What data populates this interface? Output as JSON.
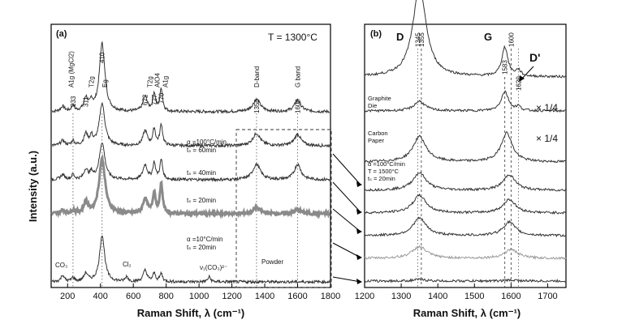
{
  "chart_data": [
    {
      "panel": "(a)",
      "type": "line",
      "annotation_temperature": "T = 1300°C",
      "xlabel": "Raman Shift,  λ (cm⁻¹)",
      "ylabel": "Intensity   (a.u.)",
      "xlim": [
        100,
        1800
      ],
      "xticks": [
        200,
        400,
        600,
        800,
        1000,
        1200,
        1400,
        1600,
        1800
      ],
      "grid": false,
      "peak_labels": [
        {
          "text": "233",
          "x": 233
        },
        {
          "text": "A1g (MgCl2)",
          "x": 222
        },
        {
          "text": "311",
          "x": 311
        },
        {
          "text": "T2g",
          "x": 345
        },
        {
          "text": "410",
          "x": 410
        },
        {
          "text": "Eg",
          "x": 425
        },
        {
          "text": "672",
          "x": 672
        },
        {
          "text": "T2g",
          "x": 700
        },
        {
          "text": "727",
          "x": 727
        },
        {
          "text": "AlO4",
          "x": 745
        },
        {
          "text": "770",
          "x": 770
        },
        {
          "text": "A1g",
          "x": 795
        },
        {
          "text": "1350",
          "x": 1350
        },
        {
          "text": "D-band",
          "x": 1350
        },
        {
          "text": "1600",
          "x": 1600
        },
        {
          "text": "G band",
          "x": 1600
        }
      ],
      "guide_lines_x": [
        233,
        410,
        1350,
        1600
      ],
      "series": [
        {
          "label_lines": [
            "α =100°C/min",
            "tₛ = 60min"
          ],
          "offset": 5,
          "color": "#333333",
          "thick": false,
          "peaks": [
            [
              170,
              0.3,
              15
            ],
            [
              233,
              0.35,
              10
            ],
            [
              311,
              0.8,
              14
            ],
            [
              345,
              0.5,
              10
            ],
            [
              410,
              4.2,
              20
            ],
            [
              672,
              0.9,
              16
            ],
            [
              727,
              1.1,
              10
            ],
            [
              770,
              1.4,
              10
            ],
            [
              1350,
              0.75,
              28
            ],
            [
              1600,
              0.7,
              24
            ]
          ]
        },
        {
          "label_lines": [
            "tₛ = 40min"
          ],
          "offset": 4,
          "color": "#333333",
          "thick": false,
          "peaks": [
            [
              170,
              0.3,
              15
            ],
            [
              233,
              0.3,
              10
            ],
            [
              311,
              0.7,
              14
            ],
            [
              345,
              0.5,
              10
            ],
            [
              410,
              2.6,
              20
            ],
            [
              672,
              0.9,
              16
            ],
            [
              727,
              1.0,
              10
            ],
            [
              770,
              1.3,
              10
            ],
            [
              1350,
              0.75,
              28
            ],
            [
              1600,
              0.7,
              24
            ]
          ]
        },
        {
          "label_lines": [
            "tₛ = 20min"
          ],
          "offset": 3,
          "color": "#333333",
          "thick": false,
          "peaks": [
            [
              170,
              0.3,
              15
            ],
            [
              233,
              0.3,
              10
            ],
            [
              311,
              0.6,
              14
            ],
            [
              345,
              0.4,
              10
            ],
            [
              410,
              2.3,
              20
            ],
            [
              672,
              0.9,
              16
            ],
            [
              727,
              1.0,
              10
            ],
            [
              770,
              1.2,
              10
            ],
            [
              1350,
              0.95,
              28
            ],
            [
              1600,
              0.95,
              24
            ]
          ]
        },
        {
          "label_lines": [
            "α =10°C/min",
            "tₛ = 20min"
          ],
          "offset": 2,
          "color": "#8a8a8a",
          "thick": true,
          "peaks": [
            [
              170,
              0.2,
              15
            ],
            [
              233,
              0.2,
              10
            ],
            [
              311,
              0.7,
              14
            ],
            [
              410,
              3.4,
              22
            ],
            [
              672,
              0.9,
              16
            ],
            [
              727,
              1.3,
              10
            ],
            [
              770,
              1.8,
              10
            ],
            [
              1350,
              0.35,
              28
            ],
            [
              1600,
              0.25,
              24
            ]
          ]
        },
        {
          "label_lines": [
            "Powder"
          ],
          "offset": 0,
          "color": "#333333",
          "thick": false,
          "peaks": [
            [
              170,
              0.4,
              12
            ],
            [
              233,
              0.25,
              10
            ],
            [
              311,
              0.5,
              14
            ],
            [
              410,
              2.9,
              18
            ],
            [
              560,
              0.3,
              10
            ],
            [
              672,
              0.7,
              14
            ],
            [
              727,
              0.5,
              10
            ],
            [
              770,
              0.5,
              10
            ],
            [
              1062,
              0.3,
              10
            ]
          ]
        }
      ],
      "other_labels": [
        "CO₃",
        "Cl₂",
        "ν₁(CO₃)²⁻"
      ]
    },
    {
      "panel": "(b)",
      "type": "line",
      "xlabel": "Raman Shift,  λ (cm⁻¹)",
      "xlim": [
        1200,
        1750
      ],
      "xticks": [
        1200,
        1300,
        1400,
        1500,
        1600,
        1700
      ],
      "band_labels": [
        "D",
        "G",
        "D'"
      ],
      "peak_labels": [
        {
          "text": "1345",
          "x": 1345
        },
        {
          "text": "1355",
          "x": 1355
        },
        {
          "text": "1583",
          "x": 1583
        },
        {
          "text": "1600",
          "x": 1600
        },
        {
          "text": "1620",
          "x": 1620
        }
      ],
      "guide_lines_x": [
        1345,
        1355,
        1583,
        1600,
        1620
      ],
      "series": [
        {
          "label_lines": [
            "Graphite",
            "Die"
          ],
          "scale": "× 1/4",
          "offset": 7.2,
          "peaks": [
            [
              1350,
              4.6,
              22
            ],
            [
              1583,
              1.5,
              10
            ],
            [
              1620,
              0.3,
              8
            ]
          ]
        },
        {
          "label_lines": [
            "Carbon",
            "Paper"
          ],
          "scale": "× 1/4",
          "offset": 6,
          "peaks": [
            [
              1350,
              0.5,
              18
            ],
            [
              1583,
              1.0,
              12
            ],
            [
              1620,
              0.2,
              8
            ]
          ]
        },
        {
          "label_lines": [
            "α =100°C/min",
            "T = 1500°C",
            "tₛ = 20min"
          ],
          "offset": 4.2,
          "peaks": [
            [
              1350,
              1.3,
              22
            ],
            [
              1588,
              1.5,
              18
            ]
          ]
        },
        {
          "label_lines": [],
          "offset": 3.2,
          "peaks": [
            [
              1350,
              0.9,
              22
            ],
            [
              1595,
              0.8,
              20
            ]
          ]
        },
        {
          "label_lines": [],
          "offset": 2.4,
          "peaks": [
            [
              1350,
              0.9,
              22
            ],
            [
              1595,
              0.7,
              20
            ]
          ]
        },
        {
          "label_lines": [],
          "offset": 1.6,
          "peaks": [
            [
              1350,
              0.9,
              22
            ],
            [
              1595,
              0.7,
              20
            ]
          ]
        },
        {
          "label_lines": [],
          "offset": 0.8,
          "color": "#9a9a9a",
          "peaks": [
            [
              1350,
              0.6,
              24
            ],
            [
              1600,
              0.45,
              22
            ]
          ]
        },
        {
          "label_lines": [],
          "offset": 0,
          "peaks": [
            [
              1350,
              0.08,
              20
            ],
            [
              1600,
              0.05,
              20
            ]
          ]
        }
      ]
    }
  ]
}
